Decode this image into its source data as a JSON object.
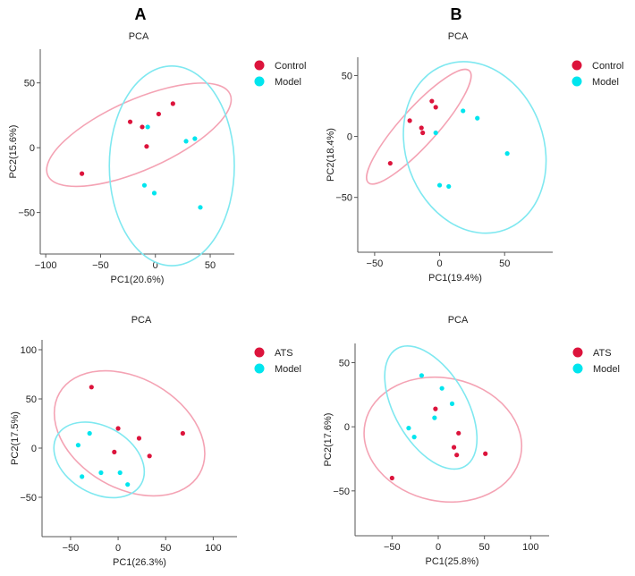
{
  "panels": [
    {
      "letter": "A"
    },
    {
      "letter": "B"
    }
  ],
  "colors": {
    "red": "#dc143c",
    "cyan": "#00e5ee",
    "ellipse_red": "#f4a3b4",
    "ellipse_cyan": "#7fe8f0"
  },
  "chart_data": [
    {
      "type": "scatter",
      "title": "PCA",
      "xlabel": "PC1(20.6%)",
      "ylabel": "PC2(15.6%)",
      "xlim": [
        -105,
        72
      ],
      "ylim": [
        -82,
        76
      ],
      "xticks": [
        -100,
        -50,
        0,
        50
      ],
      "yticks": [
        -50,
        0,
        50
      ],
      "xtick_labels": [
        "−100",
        "−50",
        "0",
        "50"
      ],
      "ytick_labels": [
        "−50",
        "0",
        "50"
      ],
      "legend": [
        "Control",
        "Model"
      ],
      "series": [
        {
          "name": "Control",
          "color": "#dc143c",
          "points": [
            [
              -67,
              -20
            ],
            [
              -23,
              20
            ],
            [
              -12,
              16
            ],
            [
              -8,
              1
            ],
            [
              3,
              26
            ],
            [
              16,
              34
            ]
          ]
        },
        {
          "name": "Model",
          "color": "#00e5ee",
          "points": [
            [
              -7,
              16
            ],
            [
              -10,
              -29
            ],
            [
              -1,
              -35
            ],
            [
              28,
              5
            ],
            [
              36,
              7
            ],
            [
              41,
              -46
            ]
          ]
        }
      ],
      "ellipses": [
        {
          "group": "Control",
          "cx": -15,
          "cy": 10,
          "rx": 91,
          "ry": 27,
          "angle": 24
        },
        {
          "group": "Model",
          "cx": 15,
          "cy": -14,
          "rx": 57,
          "ry": 77,
          "angle": 0
        }
      ]
    },
    {
      "type": "scatter",
      "title": "PCA",
      "xlabel": "PC1(19.4%)",
      "ylabel": "PC2(18.4%)",
      "xlim": [
        -63,
        87
      ],
      "ylim": [
        -95,
        65
      ],
      "xticks": [
        -50,
        0,
        50
      ],
      "yticks": [
        -50,
        0,
        50
      ],
      "xtick_labels": [
        "−50",
        "0",
        "50"
      ],
      "ytick_labels": [
        "−50",
        "0",
        "50"
      ],
      "legend": [
        "Control",
        "Model"
      ],
      "series": [
        {
          "name": "Control",
          "color": "#dc143c",
          "points": [
            [
              -38,
              -22
            ],
            [
              -23,
              13
            ],
            [
              -14,
              7
            ],
            [
              -13,
              3
            ],
            [
              -6,
              29
            ],
            [
              -3,
              24
            ]
          ]
        },
        {
          "name": "Model",
          "color": "#00e5ee",
          "points": [
            [
              -3,
              3
            ],
            [
              0,
              -40
            ],
            [
              7,
              -41
            ],
            [
              18,
              21
            ],
            [
              29,
              15
            ],
            [
              52,
              -14
            ]
          ]
        }
      ],
      "ellipses": [
        {
          "group": "Control",
          "cx": -16,
          "cy": 8,
          "rx": 58,
          "ry": 15,
          "angle": 48
        },
        {
          "group": "Model",
          "cx": 27,
          "cy": -9,
          "rx": 53,
          "ry": 72,
          "angle": 20
        }
      ]
    },
    {
      "type": "scatter",
      "title": "PCA",
      "xlabel": "PC1(26.3%)",
      "ylabel": "PC2(17.5%)",
      "xlim": [
        -80,
        125
      ],
      "ylim": [
        -90,
        110
      ],
      "xticks": [
        -50,
        0,
        50,
        100
      ],
      "yticks": [
        -50,
        0,
        50,
        100
      ],
      "xtick_labels": [
        "−50",
        "0",
        "50",
        "100"
      ],
      "ytick_labels": [
        "−50",
        "0",
        "50",
        "100"
      ],
      "legend": [
        "ATS",
        "Model"
      ],
      "series": [
        {
          "name": "ATS",
          "color": "#dc143c",
          "points": [
            [
              -28,
              62
            ],
            [
              -4,
              -4
            ],
            [
              0,
              20
            ],
            [
              22,
              10
            ],
            [
              33,
              -8
            ],
            [
              68,
              15
            ]
          ]
        },
        {
          "name": "Model",
          "color": "#00e5ee",
          "points": [
            [
              -42,
              3
            ],
            [
              -38,
              -29
            ],
            [
              -30,
              15
            ],
            [
              -18,
              -25
            ],
            [
              2,
              -25
            ],
            [
              10,
              -37
            ]
          ]
        }
      ],
      "ellipses": [
        {
          "group": "ATS",
          "cx": 12,
          "cy": 15,
          "rx": 85,
          "ry": 56,
          "angle": -30
        },
        {
          "group": "Model",
          "cx": -20,
          "cy": -12,
          "rx": 51,
          "ry": 34,
          "angle": -30
        }
      ]
    },
    {
      "type": "scatter",
      "title": "PCA",
      "xlabel": "PC1(25.8%)",
      "ylabel": "PC2(17.6%)",
      "xlim": [
        -90,
        120
      ],
      "ylim": [
        -85,
        65
      ],
      "xticks": [
        -50,
        0,
        50,
        100
      ],
      "yticks": [
        -50,
        0,
        50
      ],
      "xtick_labels": [
        "−50",
        "0",
        "50",
        "100"
      ],
      "ytick_labels": [
        "−50",
        "0",
        "50"
      ],
      "legend": [
        "ATS",
        "Model"
      ],
      "series": [
        {
          "name": "ATS",
          "color": "#dc143c",
          "points": [
            [
              -50,
              -40
            ],
            [
              -3,
              14
            ],
            [
              17,
              -16
            ],
            [
              20,
              -22
            ],
            [
              22,
              -5
            ],
            [
              51,
              -21
            ]
          ]
        },
        {
          "name": "Model",
          "color": "#00e5ee",
          "points": [
            [
              -32,
              -1
            ],
            [
              -26,
              -8
            ],
            [
              -18,
              40
            ],
            [
              -4,
              7
            ],
            [
              4,
              30
            ],
            [
              15,
              18
            ]
          ]
        }
      ],
      "ellipses": [
        {
          "group": "ATS",
          "cx": 5,
          "cy": -10,
          "rx": 86,
          "ry": 48,
          "angle": -12
        },
        {
          "group": "Model",
          "cx": -8,
          "cy": 15,
          "rx": 39,
          "ry": 53,
          "angle": 30
        }
      ]
    }
  ]
}
